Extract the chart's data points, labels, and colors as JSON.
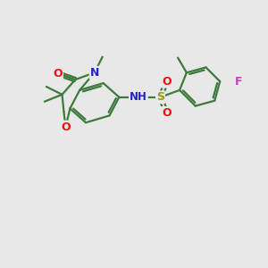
{
  "background_color": "#e8e8e8",
  "bond_color": "#3d7a3d",
  "atom_colors": {
    "O": "#ee1111",
    "N": "#2222cc",
    "S": "#999900",
    "F": "#bb44bb",
    "NH": "#2222cc",
    "H": "#888888"
  },
  "figsize": [
    3.0,
    3.0
  ],
  "dpi": 100,
  "lw": 1.6
}
